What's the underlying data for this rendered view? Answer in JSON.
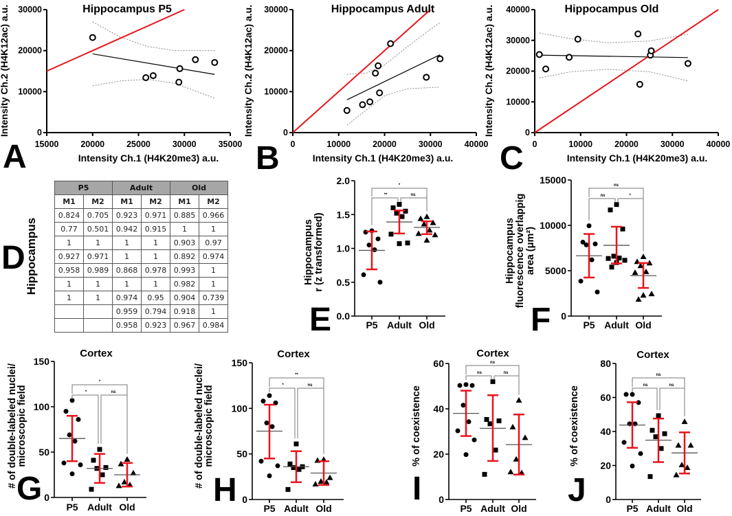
{
  "panel_letters": [
    "A",
    "B",
    "C",
    "D",
    "E",
    "F",
    "G",
    "H",
    "I",
    "J"
  ],
  "table": {
    "side_label": "Hippocampus",
    "groups": [
      "P5",
      "Adult",
      "Old"
    ],
    "columns": [
      "M1",
      "M2",
      "M1",
      "M2",
      "M1",
      "M2"
    ],
    "rows": [
      [
        "0.824",
        "0.705",
        "0.923",
        "0.971",
        "0.885",
        "0.966"
      ],
      [
        "0.77",
        "0.501",
        "0.942",
        "0.915",
        "1",
        "1"
      ],
      [
        "1",
        "1",
        "1",
        "1",
        "0.903",
        "0.97"
      ],
      [
        "0.927",
        "0.971",
        "1",
        "1",
        "0.892",
        "0.974"
      ],
      [
        "0.958",
        "0.989",
        "0.868",
        "0.978",
        "0.993",
        "1"
      ],
      [
        "1",
        "1",
        "1",
        "1",
        "0.982",
        "1"
      ],
      [
        "1",
        "1",
        "0.974",
        "0.95",
        "0.904",
        "0.739"
      ],
      [
        "",
        "",
        "0.959",
        "0.794",
        "0.918",
        "1"
      ],
      [
        "",
        "",
        "0.958",
        "0.923",
        "0.967",
        "0.984"
      ]
    ]
  },
  "chart_data": [
    {
      "type": "scatter",
      "title": "Hippocampus P5",
      "xlabel": "Intensity Ch.1 (H4K20me3) a.u.",
      "ylabel": "Intensity Ch.2 (H4K12ac) a.u.",
      "xlim": [
        15000,
        35000
      ],
      "ylim": [
        0,
        30000
      ],
      "xticks": [
        15000,
        20000,
        25000,
        30000,
        35000
      ],
      "yticks": [
        0,
        10000,
        20000,
        30000
      ],
      "points": [
        [
          20000,
          23200
        ],
        [
          25800,
          13400
        ],
        [
          26600,
          13900
        ],
        [
          29400,
          12300
        ],
        [
          29500,
          15600
        ],
        [
          31200,
          17800
        ],
        [
          33300,
          17100
        ]
      ],
      "regression": [
        [
          20000,
          19200
        ],
        [
          33300,
          14200
        ]
      ],
      "identity_line": [
        [
          15000,
          15000
        ],
        [
          30000,
          30000
        ]
      ],
      "ci_upper": [
        [
          20000,
          27000
        ],
        [
          23000,
          23300
        ],
        [
          26000,
          21000
        ],
        [
          29000,
          20000
        ],
        [
          33300,
          20000
        ]
      ],
      "ci_lower": [
        [
          20000,
          11400
        ],
        [
          23000,
          12600
        ],
        [
          26000,
          13000
        ],
        [
          29000,
          12000
        ],
        [
          33300,
          8400
        ]
      ],
      "colors": {
        "identity": "#e8141b",
        "points": "#000000",
        "ci": "#888888"
      }
    },
    {
      "type": "scatter",
      "title": "Hippocampus Adult",
      "xlabel": "Intensity Ch.1 (H4K20me3) a.u.",
      "ylabel": "Intensity Ch.2 (H4K12ac) a.u.",
      "xlim": [
        0,
        40000
      ],
      "ylim": [
        0,
        30000
      ],
      "xticks": [
        0,
        10000,
        20000,
        30000,
        40000
      ],
      "yticks": [
        0,
        10000,
        20000,
        30000
      ],
      "points": [
        [
          11800,
          5400
        ],
        [
          15200,
          6800
        ],
        [
          16800,
          7500
        ],
        [
          18000,
          14500
        ],
        [
          18600,
          16300
        ],
        [
          18900,
          9700
        ],
        [
          21300,
          21700
        ],
        [
          29100,
          13500
        ],
        [
          32100,
          18000
        ]
      ],
      "regression": [
        [
          11800,
          8000
        ],
        [
          32100,
          19000
        ]
      ],
      "identity_line": [
        [
          0,
          0
        ],
        [
          30000,
          30000
        ]
      ],
      "ci_upper": [
        [
          11800,
          14200
        ],
        [
          16000,
          14500
        ],
        [
          20000,
          16500
        ],
        [
          25000,
          21000
        ],
        [
          32100,
          26900
        ]
      ],
      "ci_lower": [
        [
          11800,
          1800
        ],
        [
          16000,
          5500
        ],
        [
          20000,
          9000
        ],
        [
          25000,
          10700
        ],
        [
          32100,
          11100
        ]
      ],
      "colors": {
        "identity": "#e8141b",
        "points": "#000000",
        "ci": "#888888"
      }
    },
    {
      "type": "scatter",
      "title": "Hippocampus Old",
      "xlabel": "Intensity Ch.1 (H4K20me3) a.u.",
      "ylabel": "Intensity Ch.2 (H4K12ac) a.u.",
      "xlim": [
        0,
        40000
      ],
      "ylim": [
        0,
        40000
      ],
      "xticks": [
        0,
        10000,
        20000,
        30000,
        40000
      ],
      "yticks": [
        0,
        10000,
        20000,
        30000,
        40000
      ],
      "points": [
        [
          1000,
          25400
        ],
        [
          2400,
          20700
        ],
        [
          7500,
          24500
        ],
        [
          9400,
          30400
        ],
        [
          22500,
          32100
        ],
        [
          22900,
          15700
        ],
        [
          25200,
          25200
        ],
        [
          25400,
          26600
        ],
        [
          33400,
          22500
        ]
      ],
      "regression": [
        [
          1000,
          25200
        ],
        [
          33400,
          24400
        ]
      ],
      "identity_line": [
        [
          0,
          0
        ],
        [
          40000,
          40000
        ]
      ],
      "ci_upper": [
        [
          1000,
          32400
        ],
        [
          8000,
          30500
        ],
        [
          16000,
          29200
        ],
        [
          25000,
          29800
        ],
        [
          33400,
          32000
        ]
      ],
      "ci_lower": [
        [
          1000,
          17800
        ],
        [
          8000,
          19800
        ],
        [
          16000,
          20600
        ],
        [
          25000,
          19800
        ],
        [
          33400,
          16800
        ]
      ],
      "colors": {
        "identity": "#e8141b",
        "points": "#000000",
        "ci": "#888888"
      }
    },
    {
      "type": "dot",
      "title": "",
      "ylabel_lines": [
        "Hippocampus",
        "r (z transformed)"
      ],
      "categories": [
        "P5",
        "Adult",
        "Old"
      ],
      "ylim": [
        0,
        2
      ],
      "yticks": [
        "0.0",
        "0.5",
        "1.0",
        "1.5",
        "2.0"
      ],
      "groups": [
        {
          "values": [
            1.26,
            1.24,
            1.14,
            1.05,
            0.98,
            0.61,
            0.5
          ],
          "mean": 0.97,
          "err": [
            0.69,
            1.25
          ]
        },
        {
          "values": [
            1.65,
            1.6,
            1.55,
            1.52,
            1.47,
            1.21,
            1.08,
            1.07
          ],
          "mean": 1.39,
          "err": [
            1.22,
            1.56
          ]
        },
        {
          "values": [
            1.47,
            1.44,
            1.38,
            1.36,
            1.27,
            1.22,
            1.2,
            1.12
          ],
          "mean": 1.31,
          "err": [
            1.21,
            1.4
          ]
        }
      ],
      "significance": [
        {
          "pair": [
            0,
            2
          ],
          "label": "*"
        },
        {
          "pair": [
            0,
            1
          ],
          "label": "**"
        },
        {
          "pair": [
            1,
            2
          ],
          "label": "ns"
        }
      ]
    },
    {
      "type": "dot",
      "title": "",
      "ylabel_lines": [
        "Hippocampus",
        "fluorescence overlappig",
        "area (μm²)"
      ],
      "categories": [
        "P5",
        "Adult",
        "Old"
      ],
      "ylim": [
        0,
        15000
      ],
      "yticks": [
        "0",
        "5000",
        "10000",
        "15000"
      ],
      "groups": [
        {
          "values": [
            9950,
            8150,
            7950,
            7850,
            6200,
            3850,
            2650
          ],
          "mean": 6650,
          "err": [
            4250,
            9050
          ]
        },
        {
          "values": [
            12300,
            11700,
            9600,
            6600,
            6400,
            6350,
            6150,
            5900,
            5400
          ],
          "mean": 7800,
          "err": [
            5800,
            9850
          ]
        },
        {
          "values": [
            6550,
            6000,
            5850,
            5550,
            4900,
            4800,
            2450,
            2300,
            1850
          ],
          "mean": 4450,
          "err": [
            3100,
            5850
          ]
        }
      ],
      "significance": [
        {
          "pair": [
            0,
            2
          ],
          "label": "ns"
        },
        {
          "pair": [
            0,
            1
          ],
          "label": "ns"
        },
        {
          "pair": [
            1,
            2
          ],
          "label": "*"
        }
      ]
    },
    {
      "type": "dot",
      "title": "Cortex",
      "ylabel_lines": [
        "# of double-labeled nuclei/",
        "microscopic field"
      ],
      "categories": [
        "P5",
        "Adult",
        "Old"
      ],
      "ylim": [
        0,
        150
      ],
      "yticks": [
        "0",
        "50",
        "100",
        "150"
      ],
      "groups": [
        {
          "values": [
            107,
            95,
            86,
            69,
            62,
            38,
            36,
            26
          ],
          "mean": 65,
          "err": [
            40,
            90
          ]
        },
        {
          "values": [
            53,
            41,
            33,
            32,
            25,
            9
          ],
          "mean": 32,
          "err": [
            16,
            48
          ]
        },
        {
          "values": [
            42,
            37,
            27,
            17,
            14,
            13
          ],
          "mean": 25,
          "err": [
            12,
            38
          ]
        }
      ],
      "significance": [
        {
          "pair": [
            0,
            2
          ],
          "label": "*"
        },
        {
          "pair": [
            0,
            1
          ],
          "label": "*"
        },
        {
          "pair": [
            1,
            2
          ],
          "label": "ns"
        }
      ]
    },
    {
      "type": "dot",
      "title": "Cortex",
      "ylabel_lines": [
        "# of double-labeled nuclei/",
        "microscopic field"
      ],
      "categories": [
        "P5",
        "Adult",
        "Old"
      ],
      "ylim": [
        0,
        150
      ],
      "yticks": [
        "0",
        "50",
        "100",
        "150"
      ],
      "groups": [
        {
          "values": [
            114,
            108,
            106,
            84,
            80,
            42,
            37,
            26
          ],
          "mean": 75,
          "err": [
            45,
            104
          ]
        },
        {
          "values": [
            61,
            39,
            36,
            35,
            33,
            11
          ],
          "mean": 36,
          "err": [
            19,
            53
          ]
        },
        {
          "values": [
            44,
            43,
            24,
            20,
            19,
            17
          ],
          "mean": 29,
          "err": [
            16,
            42
          ]
        }
      ],
      "significance": [
        {
          "pair": [
            0,
            2
          ],
          "label": "**"
        },
        {
          "pair": [
            0,
            1
          ],
          "label": "*"
        },
        {
          "pair": [
            1,
            2
          ],
          "label": "ns"
        }
      ]
    },
    {
      "type": "dot",
      "title": "Cortex",
      "ylabel_lines": [
        "% of coexistence"
      ],
      "categories": [
        "P5",
        "Adult",
        "Old"
      ],
      "ylim": [
        0,
        60
      ],
      "yticks": [
        "0",
        "20",
        "40",
        "60"
      ],
      "groups": [
        {
          "values": [
            50.7,
            50.3,
            50.3,
            41.6,
            34.3,
            30.3,
            26.3,
            19.8
          ],
          "mean": 38,
          "err": [
            28,
            48
          ]
        },
        {
          "values": [
            52,
            35.3,
            34.7,
            33.4,
            21.8,
            11.1
          ],
          "mean": 31.4,
          "err": [
            17,
            46
          ]
        },
        {
          "values": [
            43.8,
            32,
            27.3,
            17.8,
            11.8,
            12.2
          ],
          "mean": 24.2,
          "err": [
            11,
            37.5
          ]
        }
      ],
      "significance": [
        {
          "pair": [
            0,
            2
          ],
          "label": "ns"
        },
        {
          "pair": [
            0,
            1
          ],
          "label": "ns"
        },
        {
          "pair": [
            1,
            2
          ],
          "label": "ns"
        }
      ]
    },
    {
      "type": "dot",
      "title": "Cortex",
      "ylabel_lines": [
        "% of coexistence"
      ],
      "categories": [
        "P5",
        "Adult",
        "Old"
      ],
      "ylim": [
        0,
        80
      ],
      "yticks": [
        "0",
        "20",
        "40",
        "60",
        "80"
      ],
      "groups": [
        {
          "values": [
            61.8,
            61.8,
            57,
            44.5,
            44.5,
            33.6,
            27,
            19.7
          ],
          "mean": 43.8,
          "err": [
            30.4,
            57.2
          ]
        },
        {
          "values": [
            49.3,
            40.7,
            38.7,
            36.9,
            30,
            13.5
          ],
          "mean": 34.9,
          "err": [
            22,
            47.6
          ]
        },
        {
          "values": [
            45.8,
            31.9,
            31.9,
            20.4,
            18.8,
            14.5
          ],
          "mean": 27.4,
          "err": [
            15.3,
            39.5
          ]
        }
      ],
      "significance": [
        {
          "pair": [
            0,
            2
          ],
          "label": "ns"
        },
        {
          "pair": [
            0,
            1
          ],
          "label": "ns"
        },
        {
          "pair": [
            1,
            2
          ],
          "label": "ns"
        }
      ]
    }
  ]
}
